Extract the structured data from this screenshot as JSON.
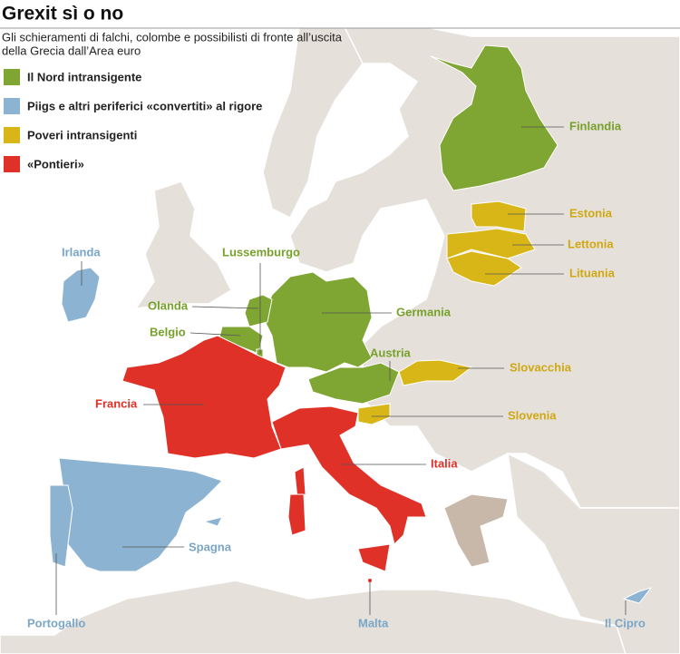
{
  "header": {
    "title": "Grexit sì o no",
    "subtitle": [
      "Gli schieramenti di falchi, colombe e possibilisti di fronte all’uscita",
      "della Grecia dall’Area euro"
    ]
  },
  "legend": {
    "items": [
      "Il Nord intransigente",
      "Piigs e altri periferici «convertiti» al rigore",
      "Poveri intransigenti",
      "«Pontieri»"
    ]
  },
  "labels": [
    "Finlandia",
    "Estonia",
    "Lettonia",
    "Lituania",
    "Irlanda",
    "Lussemburgo",
    "Olanda",
    "Belgio",
    "Germania",
    "Austria",
    "Slovacchia",
    "Francia",
    "Slovenia",
    "Italia",
    "Spagna",
    "Portogallo",
    "Malta",
    "Il Cipro"
  ]
}
